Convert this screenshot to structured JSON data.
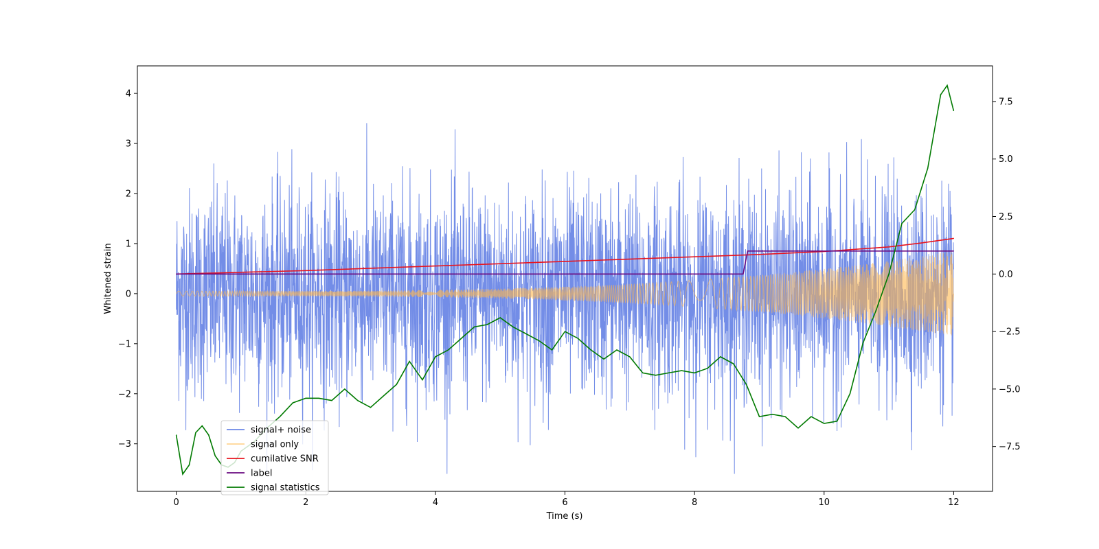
{
  "chart_data": {
    "type": "line",
    "title": "",
    "xlabel": "Time (s)",
    "ylabel": "Whitened strain",
    "y2label": "",
    "xlim": [
      -0.6,
      12.6
    ],
    "ylim": [
      -3.95,
      4.55
    ],
    "y2lim": [
      -9.45,
      9.05
    ],
    "xticks": [
      0,
      2,
      4,
      6,
      8,
      10,
      12
    ],
    "yticks": [
      -3,
      -2,
      -1,
      0,
      1,
      2,
      3,
      4
    ],
    "y2ticks": [
      -7.5,
      -5.0,
      -2.5,
      0.0,
      2.5,
      5.0,
      7.5
    ],
    "xtick_labels": [
      "0",
      "2",
      "4",
      "6",
      "8",
      "10",
      "12"
    ],
    "ytick_labels": [
      "−3",
      "−2",
      "−1",
      "0",
      "1",
      "2",
      "3",
      "4"
    ],
    "y2tick_labels": [
      "−7.5",
      "−5.0",
      "−2.5",
      "0.0",
      "2.5",
      "5.0",
      "7.5"
    ],
    "legend_position": "lower-left",
    "grid": false,
    "series": [
      {
        "name": "signal+ noise",
        "color": "#6b87e6",
        "axis": "left",
        "description_kind": "noise",
        "x_range": [
          0,
          12
        ],
        "noise_center": 0.0,
        "typical_envelope": 1.6,
        "extreme_range": [
          -3.6,
          4.2
        ]
      },
      {
        "name": "signal only",
        "color": "#ffb84d",
        "axis": "left",
        "description_kind": "chirp",
        "x_range": [
          0,
          12
        ],
        "amplitude_start": 0.05,
        "amplitude_end": 0.85
      },
      {
        "name": "cumilative SNR",
        "color": "#e8141e",
        "axis": "right",
        "x": [
          0,
          2,
          4,
          6,
          8,
          9,
          10,
          11,
          11.5,
          12
        ],
        "values": [
          0.0,
          0.15,
          0.35,
          0.55,
          0.75,
          0.85,
          0.98,
          1.18,
          1.35,
          1.55
        ]
      },
      {
        "name": "label",
        "color": "#6a0a80",
        "axis": "right",
        "x": [
          0,
          8.75,
          8.82,
          12
        ],
        "values": [
          0.0,
          0.0,
          1.0,
          1.0
        ]
      },
      {
        "name": "signal statistics",
        "color": "#007a00",
        "axis": "right",
        "x": [
          0,
          0.1,
          0.2,
          0.3,
          0.4,
          0.5,
          0.6,
          0.7,
          0.8,
          0.9,
          1.0,
          1.2,
          1.4,
          1.6,
          1.8,
          2.0,
          2.2,
          2.4,
          2.6,
          2.8,
          3.0,
          3.2,
          3.4,
          3.6,
          3.8,
          4.0,
          4.2,
          4.4,
          4.6,
          4.8,
          5.0,
          5.2,
          5.4,
          5.6,
          5.8,
          6.0,
          6.2,
          6.4,
          6.6,
          6.8,
          7.0,
          7.2,
          7.4,
          7.6,
          7.8,
          8.0,
          8.2,
          8.4,
          8.6,
          8.8,
          9.0,
          9.2,
          9.4,
          9.6,
          9.8,
          10.0,
          10.2,
          10.4,
          10.6,
          10.8,
          11.0,
          11.2,
          11.4,
          11.6,
          11.8,
          11.9,
          12.0
        ],
        "values": [
          -7.0,
          -8.7,
          -8.3,
          -6.9,
          -6.6,
          -7.0,
          -7.9,
          -8.3,
          -8.4,
          -8.2,
          -7.7,
          -7.3,
          -6.7,
          -6.2,
          -5.6,
          -5.4,
          -5.4,
          -5.5,
          -5.0,
          -5.5,
          -5.8,
          -5.3,
          -4.8,
          -3.8,
          -4.6,
          -3.6,
          -3.3,
          -2.8,
          -2.3,
          -2.2,
          -1.9,
          -2.3,
          -2.6,
          -2.9,
          -3.3,
          -2.5,
          -2.8,
          -3.3,
          -3.7,
          -3.3,
          -3.6,
          -4.3,
          -4.4,
          -4.3,
          -4.2,
          -4.3,
          -4.1,
          -3.6,
          -3.9,
          -4.8,
          -6.2,
          -6.1,
          -6.2,
          -6.7,
          -6.2,
          -6.5,
          -6.4,
          -5.2,
          -3.0,
          -1.6,
          0.0,
          2.2,
          2.8,
          4.6,
          7.8,
          8.2,
          7.1
        ]
      }
    ]
  }
}
